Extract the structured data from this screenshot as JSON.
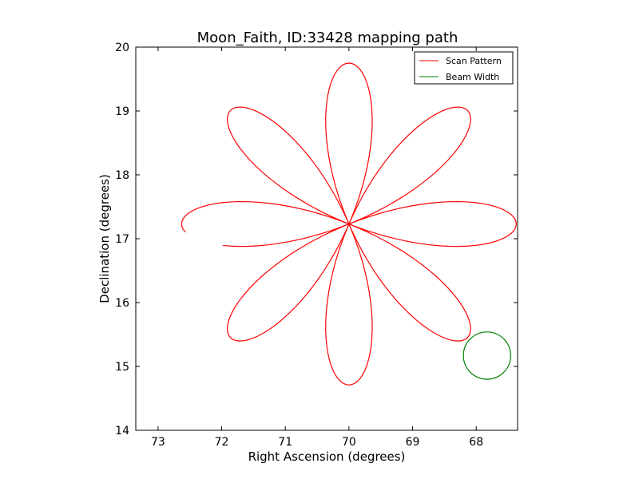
{
  "chart_data": {
    "type": "line",
    "title": "Moon_Faith, ID:33428 mapping path",
    "xlabel": "Right Ascension (degrees)",
    "ylabel": "Declination (degrees)",
    "xlim": [
      73.35,
      67.35
    ],
    "ylim": [
      14,
      20
    ],
    "xticks": [
      73,
      72,
      71,
      70,
      69,
      68
    ],
    "yticks": [
      14,
      15,
      16,
      17,
      18,
      19,
      20
    ],
    "grid": false,
    "legend_position": "top-right",
    "series": [
      {
        "name": "Scan Pattern",
        "color": "#ff0000",
        "rose": {
          "center": [
            70.0,
            17.23
          ],
          "petal_length_ra": 2.63,
          "petal_length_dec": 2.52,
          "petals": 8,
          "rotation_deg": 0,
          "ra_start_deg": 190,
          "ra_end_deg": 543
        }
      },
      {
        "name": "Beam Width",
        "color": "#008000",
        "circle": {
          "center": [
            67.83,
            15.17
          ],
          "radius_dec": 0.37
        }
      }
    ]
  }
}
